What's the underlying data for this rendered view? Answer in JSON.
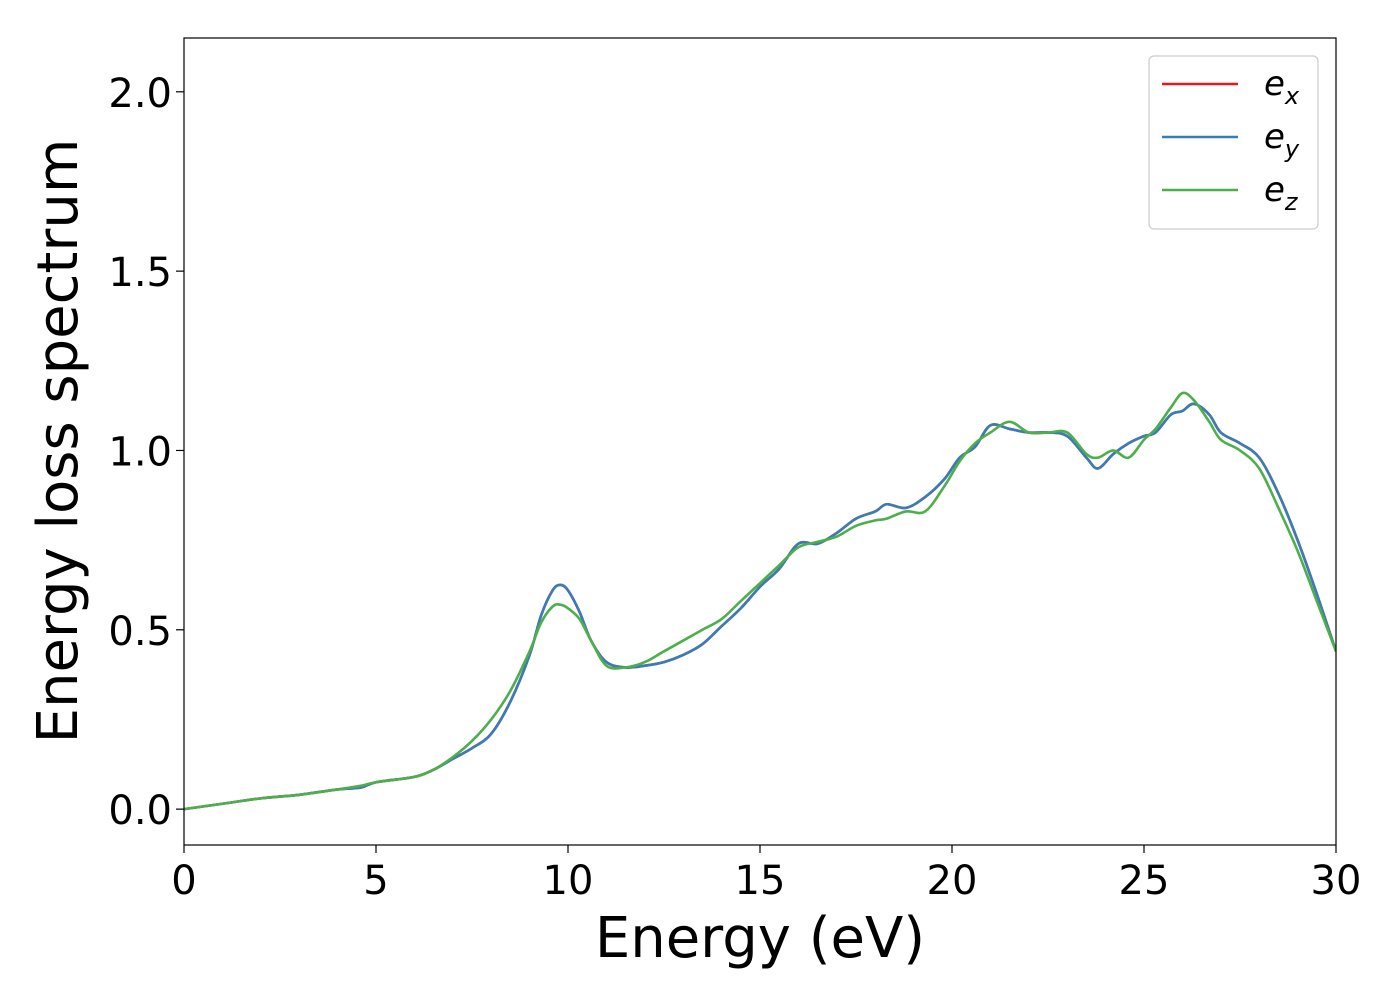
{
  "chart_data": {
    "type": "line",
    "xlabel": "Energy (eV)",
    "ylabel": "Energy loss spectrum",
    "xlim": [
      0,
      30
    ],
    "ylim": [
      -0.1,
      2.15
    ],
    "xticks": [
      0,
      5,
      10,
      15,
      20,
      25,
      30
    ],
    "xtick_labels": [
      "0",
      "5",
      "10",
      "15",
      "20",
      "25",
      "30"
    ],
    "yticks": [
      0.0,
      0.5,
      1.0,
      1.5,
      2.0
    ],
    "ytick_labels": [
      "0.0",
      "0.5",
      "1.0",
      "1.5",
      "2.0"
    ],
    "grid": false,
    "legend_position": "top-right",
    "series": [
      {
        "name": "e_x",
        "label_base": "e",
        "label_sub": "x",
        "color": "#e41a1c",
        "x": [
          0,
          1,
          2,
          3,
          4,
          4.6,
          5,
          6,
          6.5,
          7,
          7.5,
          8,
          8.5,
          9,
          9.3,
          9.6,
          9.8,
          10,
          10.3,
          10.6,
          11,
          11.5,
          12,
          12.5,
          13,
          13.5,
          14,
          14.5,
          15,
          15.5,
          16,
          16.5,
          17,
          17.5,
          18,
          18.3,
          18.8,
          19.3,
          19.8,
          20.2,
          20.6,
          21,
          21.5,
          22,
          22.5,
          23,
          23.5,
          23.8,
          24.2,
          24.6,
          25,
          25.3,
          25.7,
          26,
          26.3,
          26.7,
          27,
          27.5,
          28,
          28.5,
          29,
          29.5,
          30
        ],
        "values": [
          0.0,
          0.015,
          0.03,
          0.04,
          0.055,
          0.06,
          0.075,
          0.09,
          0.11,
          0.14,
          0.17,
          0.21,
          0.3,
          0.43,
          0.54,
          0.61,
          0.625,
          0.61,
          0.55,
          0.47,
          0.41,
          0.395,
          0.4,
          0.41,
          0.43,
          0.46,
          0.51,
          0.56,
          0.62,
          0.67,
          0.74,
          0.74,
          0.77,
          0.81,
          0.83,
          0.85,
          0.84,
          0.87,
          0.92,
          0.98,
          1.01,
          1.07,
          1.06,
          1.05,
          1.05,
          1.04,
          0.98,
          0.95,
          0.99,
          1.02,
          1.04,
          1.05,
          1.1,
          1.11,
          1.13,
          1.1,
          1.05,
          1.02,
          0.98,
          0.88,
          0.75,
          0.6,
          0.44
        ]
      },
      {
        "name": "e_y",
        "label_base": "e",
        "label_sub": "y",
        "color": "#377eb8",
        "x": [
          0,
          1,
          2,
          3,
          4,
          4.6,
          5,
          6,
          6.5,
          7,
          7.5,
          8,
          8.5,
          9,
          9.3,
          9.6,
          9.8,
          10,
          10.3,
          10.6,
          11,
          11.5,
          12,
          12.5,
          13,
          13.5,
          14,
          14.5,
          15,
          15.5,
          16,
          16.5,
          17,
          17.5,
          18,
          18.3,
          18.8,
          19.3,
          19.8,
          20.2,
          20.6,
          21,
          21.5,
          22,
          22.5,
          23,
          23.5,
          23.8,
          24.2,
          24.6,
          25,
          25.3,
          25.7,
          26,
          26.3,
          26.7,
          27,
          27.5,
          28,
          28.5,
          29,
          29.5,
          30
        ],
        "values": [
          0.0,
          0.015,
          0.03,
          0.04,
          0.055,
          0.06,
          0.075,
          0.09,
          0.11,
          0.14,
          0.17,
          0.21,
          0.3,
          0.43,
          0.54,
          0.61,
          0.625,
          0.61,
          0.55,
          0.47,
          0.41,
          0.395,
          0.4,
          0.41,
          0.43,
          0.46,
          0.51,
          0.56,
          0.62,
          0.67,
          0.74,
          0.74,
          0.77,
          0.81,
          0.83,
          0.85,
          0.84,
          0.87,
          0.92,
          0.98,
          1.01,
          1.07,
          1.06,
          1.05,
          1.05,
          1.04,
          0.98,
          0.95,
          0.99,
          1.02,
          1.04,
          1.05,
          1.1,
          1.11,
          1.13,
          1.1,
          1.05,
          1.02,
          0.98,
          0.88,
          0.75,
          0.6,
          0.44
        ]
      },
      {
        "name": "e_z",
        "label_base": "e",
        "label_sub": "z",
        "color": "#4daf4a",
        "x": [
          0,
          1,
          2,
          3,
          4,
          4.6,
          5,
          6,
          6.5,
          7,
          7.5,
          8,
          8.5,
          9,
          9.3,
          9.6,
          9.8,
          10,
          10.3,
          10.6,
          11,
          11.5,
          12,
          12.5,
          13,
          13.5,
          14,
          14.5,
          15,
          15.5,
          16,
          16.5,
          17,
          17.5,
          18,
          18.3,
          18.8,
          19.3,
          19.8,
          20.2,
          20.6,
          21,
          21.5,
          22,
          22.5,
          23,
          23.5,
          23.8,
          24.2,
          24.6,
          25,
          25.3,
          25.7,
          26,
          26.3,
          26.7,
          27,
          27.5,
          28,
          28.5,
          29,
          29.5,
          30
        ],
        "values": [
          0.0,
          0.015,
          0.03,
          0.04,
          0.055,
          0.065,
          0.075,
          0.09,
          0.11,
          0.145,
          0.19,
          0.25,
          0.33,
          0.44,
          0.52,
          0.565,
          0.57,
          0.56,
          0.53,
          0.47,
          0.4,
          0.395,
          0.41,
          0.44,
          0.47,
          0.5,
          0.53,
          0.58,
          0.63,
          0.68,
          0.73,
          0.745,
          0.76,
          0.79,
          0.805,
          0.81,
          0.83,
          0.83,
          0.9,
          0.97,
          1.02,
          1.05,
          1.08,
          1.05,
          1.05,
          1.05,
          0.99,
          0.98,
          1.0,
          0.98,
          1.03,
          1.06,
          1.12,
          1.16,
          1.14,
          1.08,
          1.03,
          1.0,
          0.95,
          0.84,
          0.72,
          0.58,
          0.44
        ]
      }
    ]
  }
}
